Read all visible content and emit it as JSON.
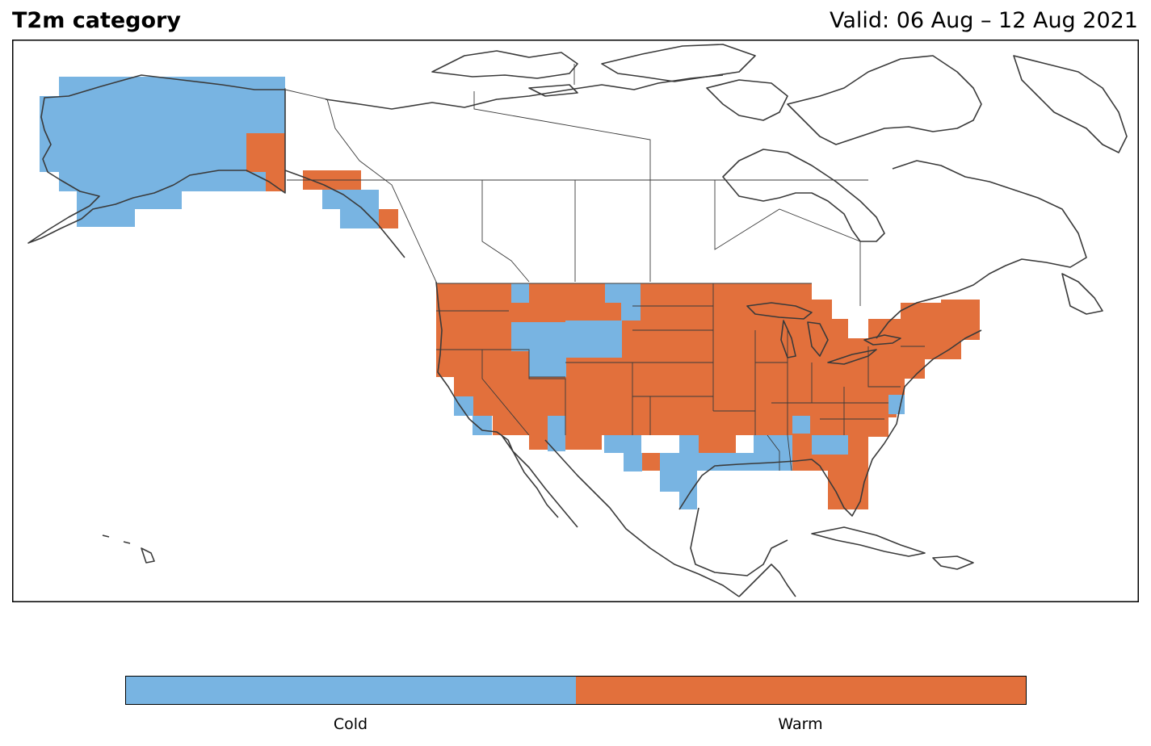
{
  "header": {
    "title": "T2m category",
    "valid": "Valid: 06 Aug – 12 Aug 2021"
  },
  "legend": {
    "categories": [
      {
        "label": "Cold",
        "color": "#78b4e2"
      },
      {
        "label": "Warm",
        "color": "#e2703c"
      }
    ]
  },
  "colors": {
    "cold": "#78b4e2",
    "warm": "#e2703c",
    "coast": "#3a3a3a",
    "border": "#000000"
  }
}
